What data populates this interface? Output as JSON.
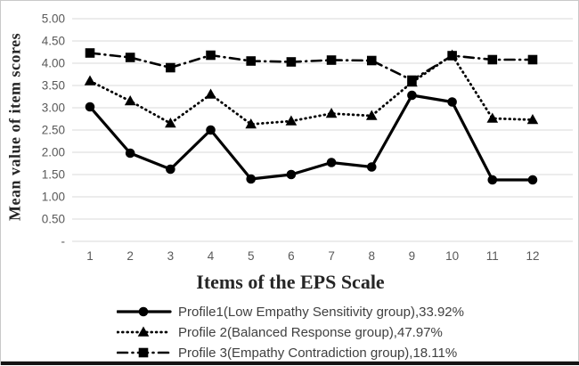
{
  "chart_data": {
    "type": "line",
    "title": "",
    "xlabel": "Items of the EPS Scale",
    "ylabel": "Mean value of item scores",
    "x": [
      1,
      2,
      3,
      4,
      5,
      6,
      7,
      8,
      9,
      10,
      11,
      12
    ],
    "ylim": [
      0,
      5
    ],
    "y_tick_labels": [
      "5.00",
      "4.50",
      "4.00",
      "3.50",
      "3.00",
      "2.50",
      "2.00",
      "1.50",
      "1.00",
      "0.50",
      "-"
    ],
    "grid": "horizontal",
    "legend_position": "bottom",
    "series": [
      {
        "name": "Profile1(Low Empathy Sensitivity group),33.92%",
        "marker": "circle",
        "line": "solid",
        "values": [
          3.02,
          1.98,
          1.62,
          2.5,
          1.4,
          1.5,
          1.77,
          1.67,
          3.28,
          3.13,
          1.38,
          1.38
        ]
      },
      {
        "name": "Profile 2(Balanced Response group),47.97%",
        "marker": "triangle",
        "line": "dotted",
        "values": [
          3.6,
          3.15,
          2.65,
          3.3,
          2.63,
          2.7,
          2.87,
          2.82,
          3.57,
          4.18,
          2.76,
          2.73
        ]
      },
      {
        "name": "Profile 3(Empathy Contradiction group),18.11%",
        "marker": "square",
        "line": "dashdot",
        "values": [
          4.23,
          4.13,
          3.9,
          4.18,
          4.05,
          4.03,
          4.07,
          4.06,
          3.62,
          4.17,
          4.08,
          4.08
        ]
      }
    ],
    "colors": {
      "series": "#000000",
      "grid": "#d9d9d9",
      "tick_label": "#595959",
      "axis_title": "#262626",
      "legend_text": "#3f3f3f"
    }
  }
}
